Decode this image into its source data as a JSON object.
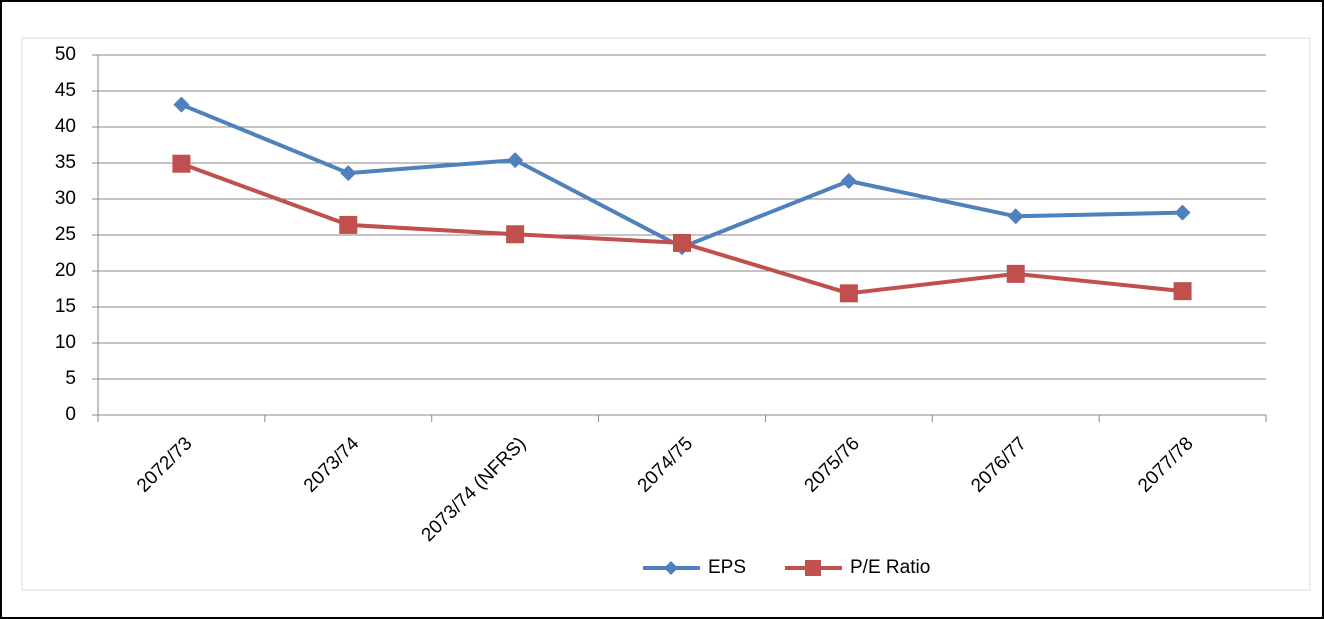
{
  "chart_data": {
    "type": "line",
    "categories": [
      "2072/73",
      "2073/74",
      "2073/74 (NFRS)",
      "2074/75",
      "2075/76",
      "2076/77",
      "2077/78"
    ],
    "series": [
      {
        "name": "EPS",
        "color": "#4f81bd",
        "marker": "diamond",
        "values": [
          43.1,
          33.6,
          35.4,
          23.3,
          32.5,
          27.6,
          28.1
        ]
      },
      {
        "name": "P/E Ratio",
        "color": "#c0504d",
        "marker": "square",
        "values": [
          34.9,
          26.4,
          25.1,
          23.9,
          16.9,
          19.6,
          17.2
        ]
      }
    ],
    "ylim": [
      0,
      50
    ],
    "yticks": [
      0,
      5,
      10,
      15,
      20,
      25,
      30,
      35,
      40,
      45,
      50
    ],
    "grid": true,
    "legend": "bottom"
  }
}
